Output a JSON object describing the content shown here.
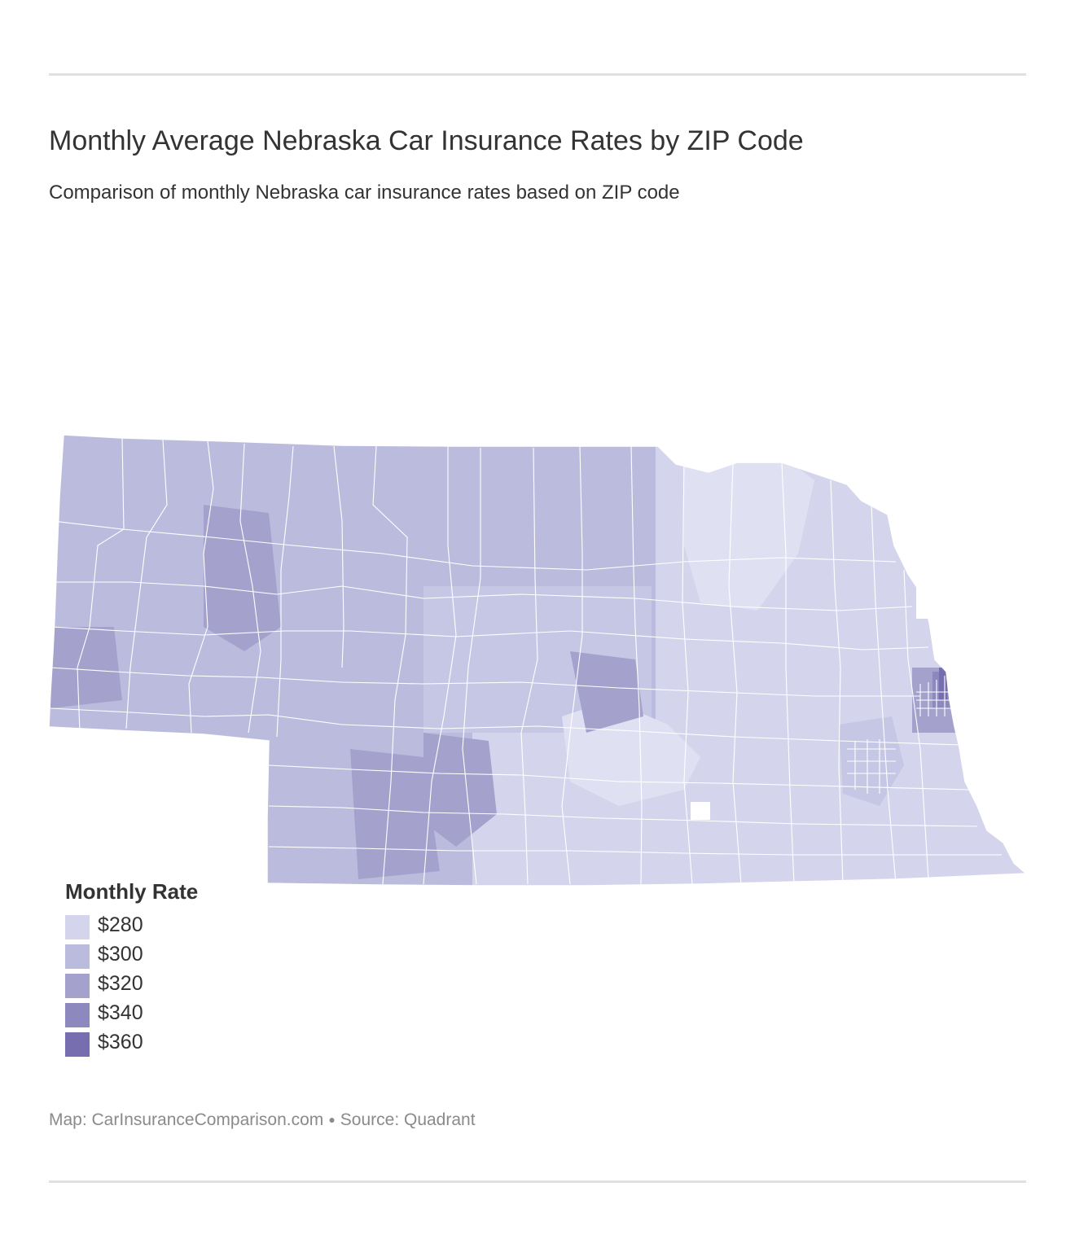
{
  "header": {
    "title": "Monthly Average Nebraska Car Insurance Rates by ZIP Code",
    "subtitle": "Comparison of monthly Nebraska car insurance rates based on ZIP code"
  },
  "legend": {
    "title": "Monthly Rate",
    "items": [
      {
        "label": "$280",
        "color": "#d4d5ec"
      },
      {
        "label": "$300",
        "color": "#bbbcdd"
      },
      {
        "label": "$320",
        "color": "#a4a2cc"
      },
      {
        "label": "$340",
        "color": "#8d88bd"
      },
      {
        "label": "$360",
        "color": "#776eb0"
      }
    ]
  },
  "colors": {
    "lightest": "#dfe1f3",
    "outline": "#ffffff",
    "rule": "#e0e0e0"
  },
  "footer": {
    "map_credit": "Map: CarInsuranceComparison.com",
    "source": "Source: Quadrant"
  }
}
